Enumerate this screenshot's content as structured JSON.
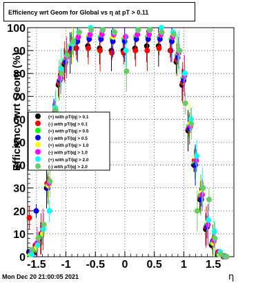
{
  "title": "Efficiency wrt Geom for Global vs   η at pT > 0.11",
  "timestamp": "Mon Dec 20 21:00:05 2021",
  "chart_data": {
    "type": "scatter",
    "title": "Efficiency wrt Geom for Global vs   η at pT > 0.11",
    "xlabel": "η",
    "ylabel": "Efficiency wrt Geom (%)",
    "xlim": [
      -1.65,
      1.85
    ],
    "ylim": [
      0,
      100
    ],
    "x_ticks": [
      "-1.5",
      "-1",
      "-0.5",
      "0",
      "0.5",
      "1",
      "1.5"
    ],
    "y_ticks": [
      "0",
      "10",
      "20",
      "30",
      "40",
      "50",
      "60",
      "70",
      "80",
      "90",
      "100"
    ],
    "grid": true,
    "legend_position": "middle-left",
    "series": [
      {
        "name": "(+) with pT/|q| > 0.1",
        "color": "#000000",
        "x": [
          -1.6,
          -1.5,
          -1.4,
          -1.3,
          -1.2,
          -1.1,
          -1.0,
          -0.9,
          -0.8,
          -0.6,
          -0.4,
          -0.2,
          0.0,
          0.2,
          0.4,
          0.6,
          0.8,
          0.9,
          1.0,
          1.1,
          1.2,
          1.3,
          1.4,
          1.5,
          1.6,
          1.7
        ],
        "y": [
          2,
          2,
          8,
          30,
          60,
          75,
          84,
          89,
          91,
          92,
          91,
          90,
          90,
          91,
          92,
          92,
          90,
          85,
          75,
          55,
          40,
          25,
          12,
          5,
          1,
          0
        ]
      },
      {
        "name": "(-) with pT/|q| > 0.1",
        "color": "#ff0000",
        "x": [
          -1.6,
          -1.5,
          -1.4,
          -1.3,
          -1.2,
          -1.1,
          -1.0,
          -0.9,
          -0.8,
          -0.6,
          -0.4,
          -0.2,
          0.0,
          0.2,
          0.4,
          0.6,
          0.8,
          0.9,
          1.0,
          1.1,
          1.2,
          1.3,
          1.4,
          1.5,
          1.6,
          1.7
        ],
        "y": [
          17,
          5,
          10,
          32,
          62,
          76,
          85,
          90,
          91,
          91,
          90,
          89,
          89,
          90,
          90,
          91,
          90,
          86,
          76,
          56,
          42,
          26,
          13,
          6,
          2,
          0
        ]
      },
      {
        "name": "(+) with pT/|q| > 0.5",
        "color": "#00ff00",
        "x": [
          -1.6,
          -1.5,
          -1.4,
          -1.3,
          -1.2,
          -1.1,
          -1.0,
          -0.9,
          -0.8,
          -0.6,
          -0.4,
          -0.2,
          0.0,
          0.2,
          0.4,
          0.6,
          0.8,
          0.9,
          1.0,
          1.1,
          1.2,
          1.3,
          1.4,
          1.5,
          1.6,
          1.7
        ],
        "y": [
          1,
          3,
          9,
          31,
          61,
          77,
          86,
          92,
          95,
          96,
          96,
          95,
          95,
          96,
          96,
          96,
          95,
          88,
          78,
          57,
          41,
          27,
          14,
          6,
          1,
          0
        ]
      },
      {
        "name": "(-) with pT/|q| > 0.5",
        "color": "#0000ff",
        "x": [
          -1.6,
          -1.5,
          -1.4,
          -1.3,
          -1.2,
          -1.1,
          -1.0,
          -0.9,
          -0.8,
          -0.6,
          -0.4,
          -0.2,
          0.0,
          0.2,
          0.4,
          0.6,
          0.8,
          0.9,
          1.0,
          1.1,
          1.2,
          1.3,
          1.4,
          1.5,
          1.6,
          1.7
        ],
        "y": [
          2,
          20,
          10,
          30,
          60,
          77,
          85,
          91,
          94,
          95,
          95,
          94,
          94,
          95,
          95,
          95,
          94,
          87,
          77,
          56,
          40,
          25,
          13,
          7,
          1,
          0
        ]
      },
      {
        "name": "(+) with pT/|q| > 1.0",
        "color": "#ffff00",
        "x": [
          -1.6,
          -1.5,
          -1.4,
          -1.3,
          -1.2,
          -1.1,
          -1.0,
          -0.9,
          -0.8,
          -0.6,
          -0.4,
          -0.2,
          0.0,
          0.2,
          0.4,
          0.6,
          0.8,
          0.9,
          1.0,
          1.1,
          1.2,
          1.3,
          1.4,
          1.5,
          1.6,
          1.7
        ],
        "y": [
          1,
          4,
          10,
          31,
          62,
          78,
          87,
          93,
          96,
          97,
          97,
          96,
          96,
          97,
          97,
          97,
          96,
          89,
          79,
          58,
          43,
          28,
          15,
          6,
          1,
          0
        ]
      },
      {
        "name": "(-) with pT/|q| > 1.0",
        "color": "#ff00ff",
        "x": [
          -1.6,
          -1.5,
          -1.4,
          -1.3,
          -1.2,
          -1.1,
          -1.0,
          -0.9,
          -0.8,
          -0.6,
          -0.4,
          -0.2,
          0.0,
          0.2,
          0.4,
          0.6,
          0.8,
          0.9,
          1.0,
          1.1,
          1.2,
          1.3,
          1.4,
          1.5,
          1.6,
          1.7
        ],
        "y": [
          2,
          6,
          12,
          32,
          63,
          78,
          87,
          93,
          96,
          97,
          97,
          97,
          96,
          97,
          97,
          97,
          96,
          89,
          79,
          57,
          42,
          27,
          14,
          7,
          2,
          0
        ]
      },
      {
        "name": "(+) with pT/|q| > 2.0",
        "color": "#00ffff",
        "x": [
          -1.6,
          -1.5,
          -1.4,
          -1.3,
          -1.2,
          -1.1,
          -1.0,
          -0.9,
          -0.8,
          -0.6,
          -0.4,
          -0.2,
          0.0,
          0.2,
          0.4,
          0.6,
          0.8,
          0.9,
          1.0,
          1.1,
          1.2,
          1.3,
          1.4,
          1.5,
          1.6,
          1.7
        ],
        "y": [
          1,
          5,
          12,
          20,
          65,
          82,
          88,
          93,
          98,
          100,
          99,
          98,
          90,
          99,
          99,
          100,
          98,
          90,
          80,
          60,
          44,
          30,
          16,
          11,
          2,
          0
        ]
      },
      {
        "name": "(-) with pT/|q| > 2.0",
        "color": "#66cc66",
        "x": [
          -1.6,
          -1.5,
          -1.4,
          -1.3,
          -1.2,
          -1.1,
          -1.0,
          -0.9,
          -0.8,
          -0.6,
          -0.4,
          -0.2,
          0.0,
          0.2,
          0.4,
          0.6,
          0.8,
          0.9,
          1.0,
          1.1,
          1.2,
          1.3,
          1.4,
          1.5,
          1.6,
          1.7
        ],
        "y": [
          3,
          8,
          14,
          33,
          64,
          80,
          88,
          94,
          98,
          99,
          99,
          98,
          81,
          99,
          99,
          98,
          97,
          90,
          67,
          58,
          20,
          30,
          25,
          8,
          1,
          0
        ]
      }
    ]
  }
}
